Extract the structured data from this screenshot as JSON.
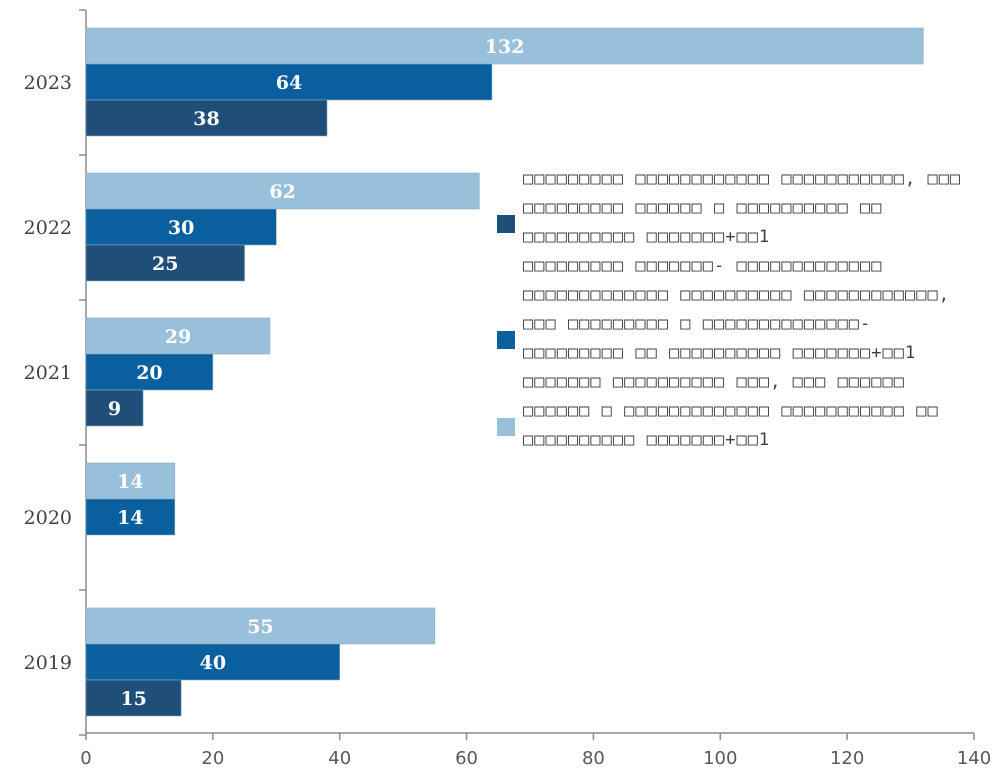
{
  "chart_data": {
    "type": "bar",
    "orientation": "horizontal",
    "categories": [
      "2023",
      "2022",
      "2021",
      "2020",
      "2019"
    ],
    "series": [
      {
        "name": "□□□□□□□□□ □□□□□□□□□□□□ □□□□□□□□□□□, □□□ □□□□□□□□□ □□□□□□ □ □□□□□□□□□□ □□ □□□□□□□□□□ □□□□□□□+□□1",
        "color": "#1f4e79",
        "values": [
          38,
          25,
          9,
          null,
          15
        ]
      },
      {
        "name": "□□□□□□□□□ □□□□□□□- □□□□□□□□□□□□□ □□□□□□□□□□□□□ □□□□□□□□□□ □□□□□□□□□□□□, □□□ □□□□□□□□□ □ □□□□□□□□□□□□□□- □□□□□□□□□ □□ □□□□□□□□□□ □□□□□□□+□□1",
        "color": "#0a5f9e",
        "values": [
          64,
          30,
          20,
          14,
          40
        ]
      },
      {
        "name": "□□□□□□□ □□□□□□□□□□ □□□, □□□ □□□□□□ □□□□□□ □ □□□□□□□□□□□□□ □□□□□□□□□□□ □□ □□□□□□□□□□ □□□□□□□+□□1",
        "color": "#99c0da",
        "values": [
          132,
          62,
          29,
          14,
          55
        ]
      }
    ],
    "xlim": [
      0,
      140
    ],
    "xticks": [
      0,
      20,
      40,
      60,
      80,
      100,
      120,
      140
    ],
    "xlabel": "",
    "ylabel": "",
    "title": "",
    "grid": false,
    "data_labels": true,
    "legend_position": "right"
  }
}
